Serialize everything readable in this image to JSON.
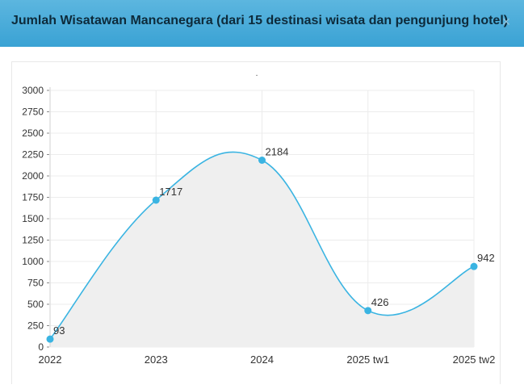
{
  "modal": {
    "title": "Jumlah Wisatawan Mancanegara (dari 15 destinasi wisata dan pengunjung hotel)",
    "close_glyph": "×"
  },
  "colors": {
    "header": "#4aaedb",
    "line": "#3ab4e2",
    "point": "#3ab4e2",
    "area": "#efefef",
    "grid": "#ececec",
    "text": "#333333"
  },
  "chart_data": {
    "type": "area",
    "title": ".",
    "categories": [
      "2022",
      "2023",
      "2024",
      "2025 tw1",
      "2025 tw2"
    ],
    "series": [
      {
        "values": [
          93,
          1717,
          2184,
          426,
          942
        ]
      }
    ],
    "data_labels": [
      "93",
      "1717",
      "2184",
      "426",
      "942"
    ],
    "y_ticks": [
      0,
      250,
      500,
      750,
      1000,
      1250,
      1500,
      1750,
      2000,
      2250,
      2500,
      2750,
      3000
    ],
    "ylim": [
      0,
      3000
    ],
    "smooth": true,
    "grid": true,
    "legend": "none"
  }
}
